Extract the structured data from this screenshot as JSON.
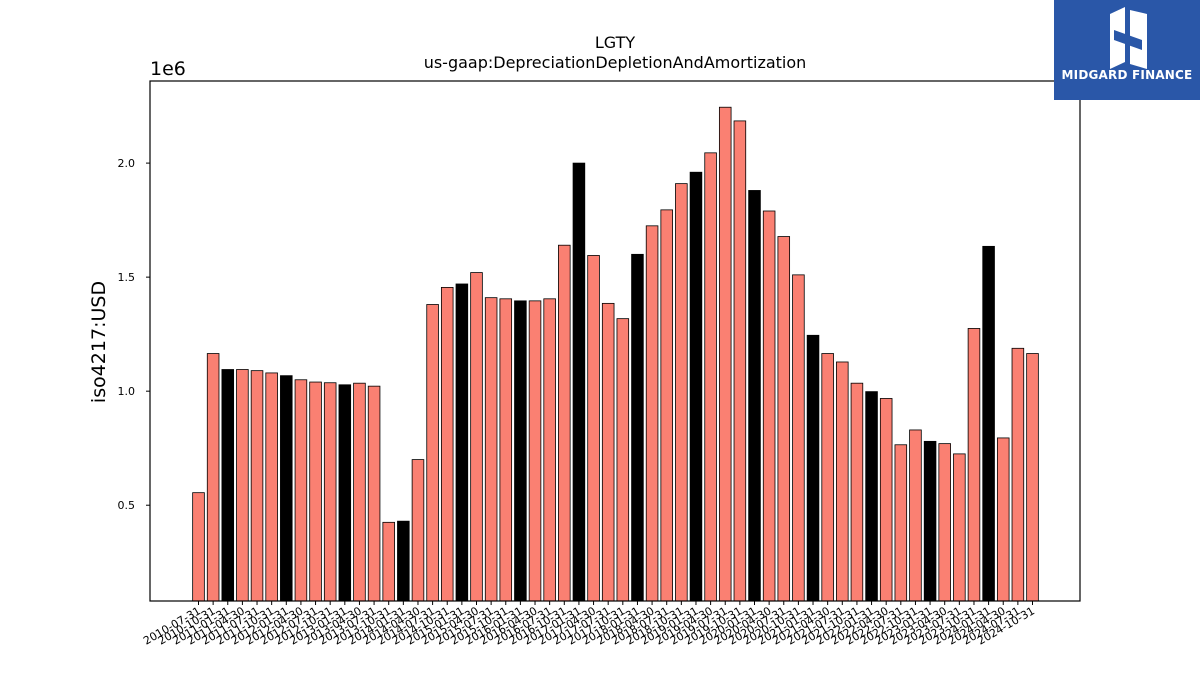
{
  "brand": {
    "name": "MIDGARD FINANCE",
    "bg_color": "#2a57a8"
  },
  "chart_data": {
    "type": "bar",
    "title": "LGTY",
    "subtitle": "us-gaap:DepreciationDepletionAndAmortization",
    "ylabel": "iso4217:USD",
    "xlabel": "",
    "scale_label": "1e6",
    "ylim": [
      0.08,
      2.36
    ],
    "yticks": [
      0.5,
      1.0,
      1.5,
      2.0
    ],
    "ytick_labels": [
      "0.5",
      "1.0",
      "1.5",
      "2.0"
    ],
    "colors": {
      "quarterly": "#fa8072",
      "annual": "#000000"
    },
    "categories": [
      "2010-07-31",
      "2010-10-31",
      "2011-01-31",
      "2011-04-30",
      "2011-07-31",
      "2011-10-31",
      "2012-01-31",
      "2012-04-30",
      "2012-07-31",
      "2012-10-31",
      "2013-01-31",
      "2013-04-30",
      "2013-07-31",
      "2013-10-31",
      "2014-01-31",
      "2014-04-30",
      "2014-07-31",
      "2014-10-31",
      "2015-01-31",
      "2015-04-30",
      "2015-07-31",
      "2015-10-31",
      "2016-01-31",
      "2016-04-30",
      "2016-07-31",
      "2016-10-31",
      "2017-01-31",
      "2017-04-30",
      "2017-07-31",
      "2017-10-31",
      "2018-01-31",
      "2018-04-30",
      "2018-07-31",
      "2018-10-31",
      "2019-01-31",
      "2019-04-30",
      "2019-07-31",
      "2019-10-31",
      "2020-01-31",
      "2020-04-30",
      "2020-07-31",
      "2020-10-31",
      "2021-01-31",
      "2021-04-30",
      "2021-07-31",
      "2021-10-31",
      "2022-01-31",
      "2022-04-30",
      "2022-07-31",
      "2022-10-31",
      "2023-01-31",
      "2023-04-30",
      "2023-07-31",
      "2023-10-31",
      "2024-01-31",
      "2024-04-30",
      "2024-07-31",
      "2024-10-31"
    ],
    "values": [
      0.555,
      1.165,
      1.095,
      1.095,
      1.09,
      1.08,
      1.068,
      1.05,
      1.04,
      1.037,
      1.028,
      1.035,
      1.022,
      0.425,
      0.43,
      0.7,
      1.38,
      1.455,
      1.47,
      1.52,
      1.41,
      1.405,
      1.396,
      1.396,
      1.405,
      1.64,
      2.0,
      1.595,
      1.385,
      1.318,
      1.6,
      1.725,
      1.795,
      1.91,
      1.96,
      2.045,
      2.245,
      2.185,
      1.88,
      1.79,
      1.678,
      1.51,
      1.245,
      1.165,
      1.128,
      1.035,
      0.998,
      0.968,
      0.765,
      0.83,
      0.78,
      0.77,
      0.725,
      1.275,
      1.635,
      0.795,
      1.188,
      1.165
    ],
    "is_annual": [
      false,
      false,
      true,
      false,
      false,
      false,
      true,
      false,
      false,
      false,
      true,
      false,
      false,
      false,
      true,
      false,
      false,
      false,
      true,
      false,
      false,
      false,
      true,
      false,
      false,
      false,
      true,
      false,
      false,
      false,
      true,
      false,
      false,
      false,
      true,
      false,
      false,
      false,
      true,
      false,
      false,
      false,
      true,
      false,
      false,
      false,
      true,
      false,
      false,
      false,
      true,
      false,
      false,
      false,
      true,
      false,
      false,
      false
    ],
    "grid": false,
    "legend": "none"
  }
}
